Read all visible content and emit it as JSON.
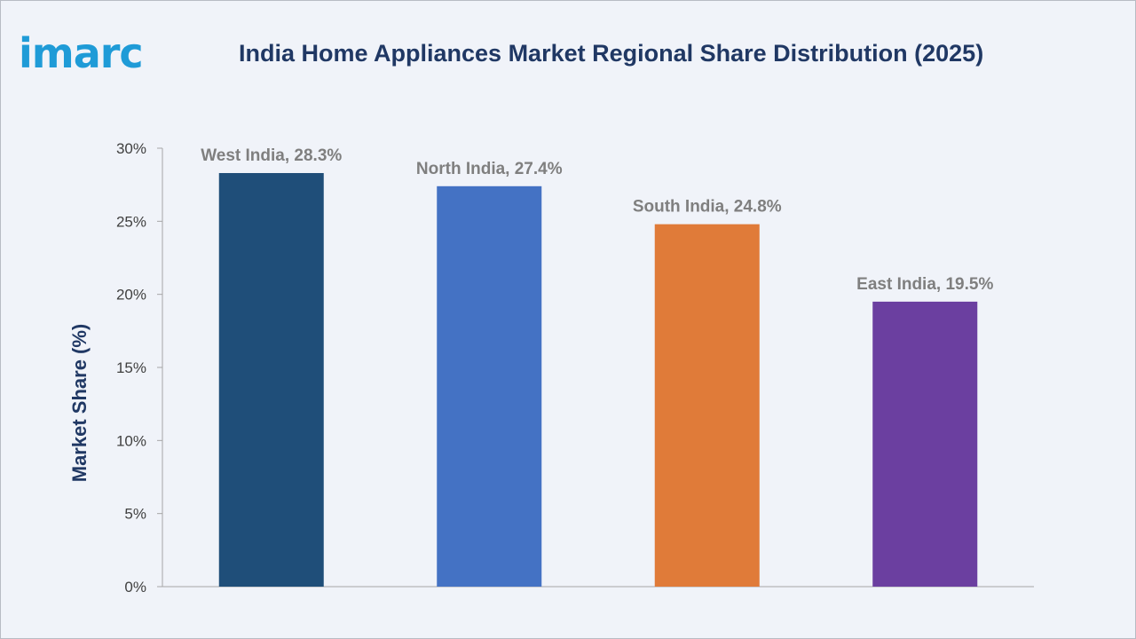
{
  "brand": {
    "logo_text": "imarc",
    "color": "#1f9bd7"
  },
  "chart_data": {
    "type": "bar",
    "title": "India Home Appliances Market Regional Share Distribution (2025)",
    "xlabel": "",
    "ylabel": "Market Share (%)",
    "ylim": [
      0,
      30
    ],
    "yticks": [
      0,
      5,
      10,
      15,
      20,
      25,
      30
    ],
    "ytick_labels": [
      "0%",
      "5%",
      "10%",
      "15%",
      "20%",
      "25%",
      "30%"
    ],
    "categories": [
      "West India",
      "North India",
      "South India",
      "East India"
    ],
    "values": [
      28.3,
      27.4,
      24.8,
      19.5
    ],
    "data_labels": [
      "West India, 28.3%",
      "North India, 27.4%",
      "South India, 24.8%",
      "East India, 19.5%"
    ],
    "colors": [
      "#1f4e79",
      "#4472c4",
      "#e07b39",
      "#6b3fa0"
    ],
    "grid": false,
    "legend": "none"
  }
}
